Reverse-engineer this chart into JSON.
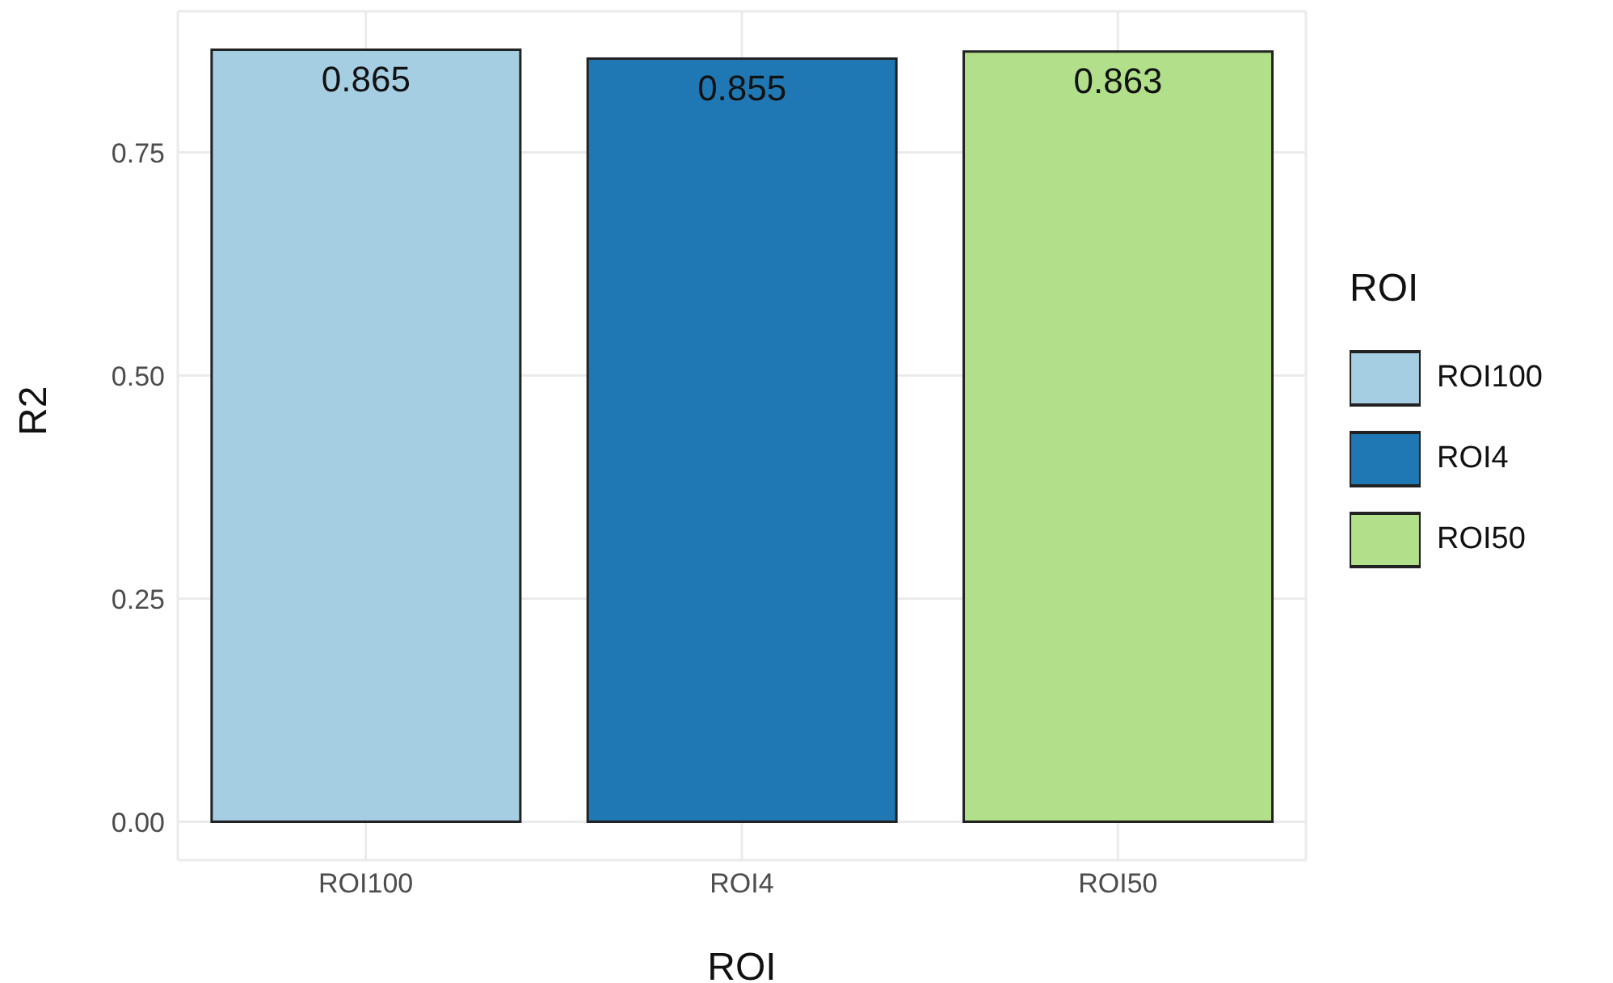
{
  "chart_data": {
    "type": "bar",
    "xlabel": "ROI",
    "ylabel": "R2",
    "legend_title": "ROI",
    "categories": [
      "ROI100",
      "ROI4",
      "ROI50"
    ],
    "series": [
      {
        "name": "ROI100",
        "color": "#a6cee3",
        "values": [
          0.865,
          null,
          null
        ]
      },
      {
        "name": "ROI4",
        "color": "#1f78b4",
        "values": [
          null,
          0.855,
          null
        ]
      },
      {
        "name": "ROI50",
        "color": "#b2df8a",
        "values": [
          null,
          null,
          0.863
        ]
      }
    ],
    "ylim": [
      -0.043,
      0.908
    ],
    "yticks": [
      {
        "value": 0,
        "label": "0.00"
      },
      {
        "value": 0.25,
        "label": "0.25"
      },
      {
        "value": 0.5,
        "label": "0.50"
      },
      {
        "value": 0.75,
        "label": "0.75"
      }
    ],
    "grid": true,
    "legend": "right",
    "data_labels": true
  }
}
